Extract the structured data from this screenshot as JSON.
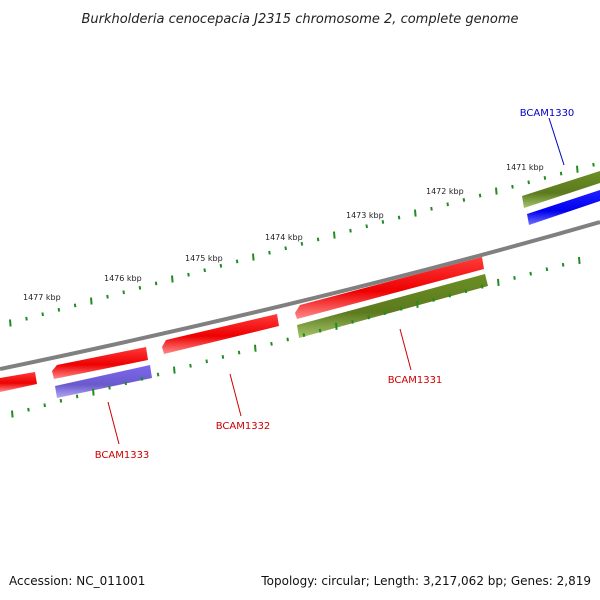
{
  "title": "Burkholderia cenocepacia J2315 chromosome 2, complete genome",
  "footer": {
    "accession": "Accession: NC_011001",
    "summary": "Topology: circular; Length: 3,217,062 bp; Genes: 2,819"
  },
  "scale": {
    "labels": [
      "1471 kbp",
      "1472 kbp",
      "1473 kbp",
      "1474 kbp",
      "1475 kbp",
      "1476 kbp",
      "1477 kbp"
    ]
  },
  "genes": [
    {
      "name": "BCAM1330",
      "strand": "forward",
      "feature": "CDS",
      "label_color": "#0000cc"
    },
    {
      "name": "BCAM1331",
      "strand": "reverse",
      "feature": "CDS",
      "label_color": "#cc0000"
    },
    {
      "name": "BCAM1332",
      "strand": "reverse",
      "feature": "CDS",
      "label_color": "#cc0000"
    },
    {
      "name": "BCAM1333",
      "strand": "reverse",
      "feature": "CDS",
      "label_color": "#cc0000"
    }
  ],
  "colors": {
    "backbone": "#808080",
    "cds": "#ee0000",
    "gene": "#6b8e23",
    "blue_feature": "#0000ee",
    "purple_feature": "#7b68ee",
    "tick": "#228b22"
  }
}
